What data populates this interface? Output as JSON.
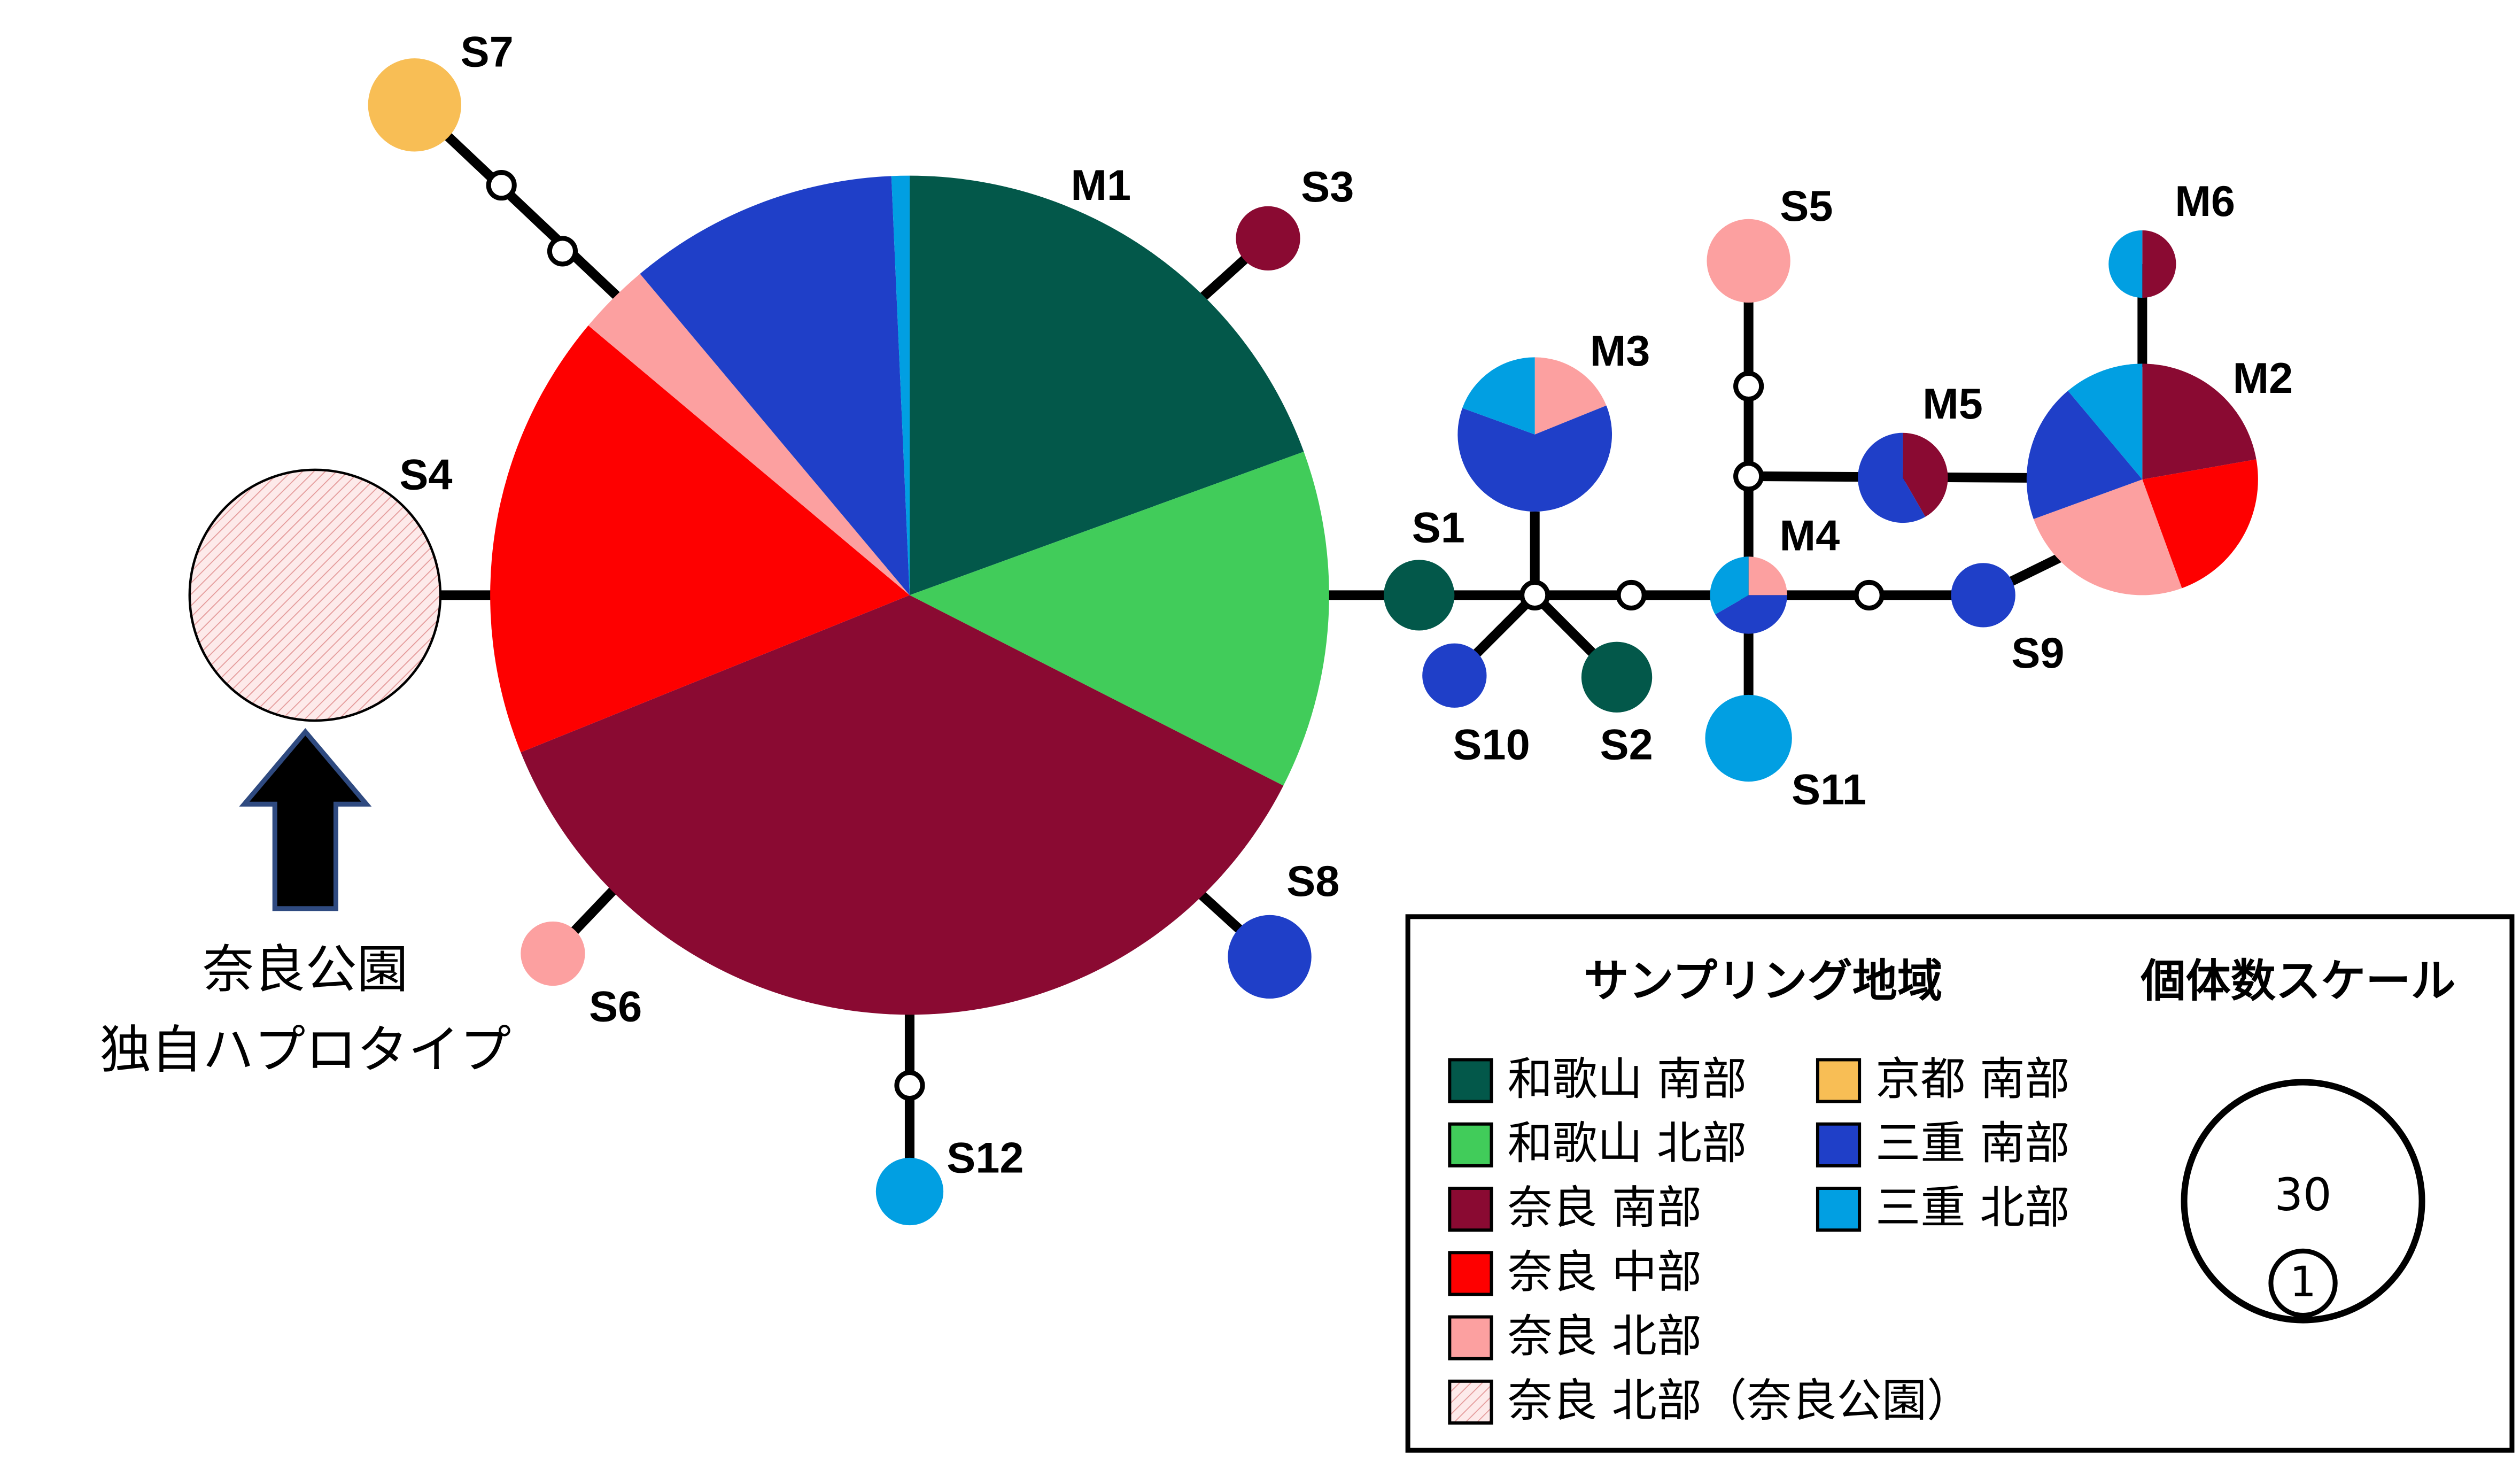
{
  "nodes": [
    {
      "label": "M1"
    },
    {
      "label": "M2"
    },
    {
      "label": "M3"
    },
    {
      "label": "M4"
    },
    {
      "label": "M5"
    },
    {
      "label": "M6"
    },
    {
      "label": "S1"
    },
    {
      "label": "S2"
    },
    {
      "label": "S3"
    },
    {
      "label": "S4"
    },
    {
      "label": "S5"
    },
    {
      "label": "S6"
    },
    {
      "label": "S7"
    },
    {
      "label": "S8"
    },
    {
      "label": "S9"
    },
    {
      "label": "S10"
    },
    {
      "label": "S11"
    },
    {
      "label": "S12"
    }
  ],
  "annotation": {
    "lines": [
      "奈良公園",
      "独自ハプロタイプ"
    ]
  },
  "legend": {
    "title": "サンプリング地域",
    "items": [
      {
        "label": "和歌山 南部"
      },
      {
        "label": "和歌山 北部"
      },
      {
        "label": "奈良 南部"
      },
      {
        "label": "奈良 中部"
      },
      {
        "label": "奈良 北部"
      },
      {
        "label": "奈良 北部（奈良公園）"
      },
      {
        "label": "京都 南部"
      },
      {
        "label": "三重 南部"
      },
      {
        "label": "三重 北部"
      }
    ]
  },
  "scale": {
    "title": "個体数スケール",
    "large": 30,
    "small": 1
  }
}
